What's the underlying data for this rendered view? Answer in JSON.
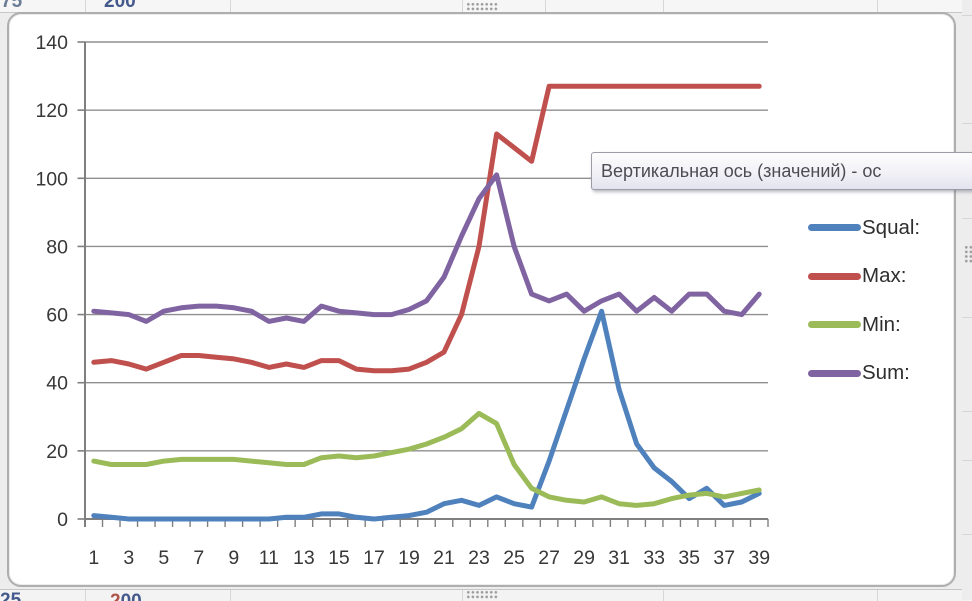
{
  "tooltip": {
    "text": "Вертикальная ось (значений)  - ос"
  },
  "background_cells": {
    "top_left_text": "75",
    "top_cell_text": "200",
    "bottom_left_text": "25",
    "bottom_cell_first_digit": "2",
    "bottom_cell_rest": "00"
  },
  "chart_data": {
    "type": "line",
    "title": "",
    "xlabel": "",
    "ylabel": "",
    "x": [
      1,
      2,
      3,
      4,
      5,
      6,
      7,
      8,
      9,
      10,
      11,
      12,
      13,
      14,
      15,
      16,
      17,
      18,
      19,
      20,
      21,
      22,
      23,
      24,
      25,
      26,
      27,
      28,
      29,
      30,
      31,
      32,
      33,
      34,
      35,
      36,
      37,
      38,
      39
    ],
    "x_tick_labels": [
      "1",
      "3",
      "5",
      "7",
      "9",
      "11",
      "13",
      "15",
      "17",
      "19",
      "21",
      "23",
      "25",
      "27",
      "29",
      "31",
      "33",
      "35",
      "37",
      "39"
    ],
    "y_tick_labels": [
      "0",
      "20",
      "40",
      "60",
      "80",
      "100",
      "120",
      "140"
    ],
    "ylim": [
      0,
      140
    ],
    "ytick_step": 20,
    "grid": true,
    "legend_position": "right",
    "axis_color": "#7f7f7f",
    "gridline_color": "#8f8f8f",
    "tick_label_color": "#383838",
    "series": [
      {
        "name": "Squal:",
        "color": "#4F81BD",
        "values": [
          1,
          0.5,
          0,
          0,
          0,
          0,
          0,
          0,
          0,
          0,
          0,
          0.5,
          0.5,
          1.5,
          1.5,
          0.5,
          0,
          0.5,
          1,
          2,
          4.5,
          5.5,
          4,
          6.5,
          4.5,
          3.5,
          17,
          32,
          47,
          61,
          38,
          22,
          15,
          11,
          6,
          9,
          4,
          5,
          7.5
        ]
      },
      {
        "name": "Max:",
        "color": "#C0504D",
        "values": [
          46,
          46.5,
          45.5,
          44,
          46,
          48,
          48,
          47.5,
          47,
          46,
          44.5,
          45.5,
          44.5,
          46.5,
          46.5,
          44,
          43.5,
          43.5,
          44,
          46,
          49,
          60,
          80,
          113,
          109,
          105,
          127,
          127,
          127,
          127,
          127,
          127,
          127,
          127,
          127,
          127,
          127,
          127,
          127
        ]
      },
      {
        "name": "Min:",
        "color": "#9BBB59",
        "values": [
          17,
          16,
          16,
          16,
          17,
          17.5,
          17.5,
          17.5,
          17.5,
          17,
          16.5,
          16,
          16,
          18,
          18.5,
          18,
          18.5,
          19.5,
          20.5,
          22,
          24,
          26.5,
          31,
          28,
          16,
          9,
          6.5,
          5.5,
          5,
          6.5,
          4.5,
          4,
          4.5,
          6,
          7,
          7.5,
          6.5,
          7.5,
          8.5
        ]
      },
      {
        "name": "Sum:",
        "color": "#8064A2",
        "values": [
          61,
          60.5,
          60,
          58,
          61,
          62,
          62.5,
          62.5,
          62,
          61,
          58,
          59,
          58,
          62.5,
          61,
          60.5,
          60,
          60,
          61.5,
          64,
          71,
          83,
          94,
          101,
          80,
          66,
          64,
          66,
          61,
          64,
          66,
          61,
          65,
          61,
          66,
          66,
          61,
          60,
          66
        ]
      }
    ]
  }
}
